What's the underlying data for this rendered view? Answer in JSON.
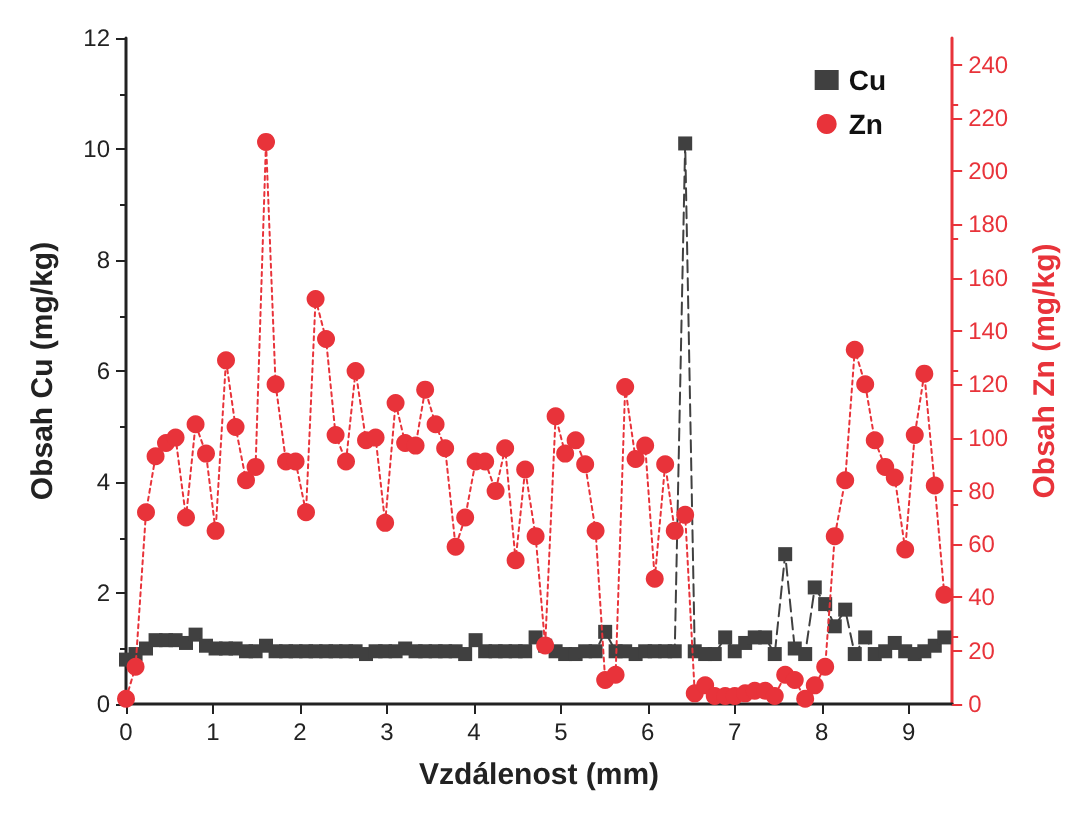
{
  "chart_data": {
    "type": "line",
    "xlabel": "Vzdálenost (mm)",
    "ylabel": "Obsah Cu (mg/kg)",
    "y2label": "Obsah Zn (mg/kg)",
    "x": [
      0,
      0.11,
      0.23,
      0.34,
      0.46,
      0.57,
      0.69,
      0.8,
      0.92,
      1.03,
      1.15,
      1.26,
      1.38,
      1.49,
      1.61,
      1.72,
      1.84,
      1.95,
      2.07,
      2.18,
      2.3,
      2.41,
      2.53,
      2.64,
      2.76,
      2.87,
      2.98,
      3.1,
      3.21,
      3.33,
      3.44,
      3.56,
      3.67,
      3.79,
      3.9,
      4.02,
      4.13,
      4.25,
      4.36,
      4.48,
      4.59,
      4.71,
      4.82,
      4.94,
      5.05,
      5.17,
      5.28,
      5.4,
      5.51,
      5.63,
      5.74,
      5.86,
      5.97,
      6.08,
      6.2,
      6.31,
      6.43,
      6.54,
      6.66,
      6.77,
      6.89,
      7.0,
      7.12,
      7.23,
      7.35,
      7.46,
      7.58,
      7.69,
      7.81,
      7.92,
      8.04,
      8.15,
      8.27,
      8.38,
      8.5,
      8.61,
      8.73,
      8.84,
      8.96,
      9.07,
      9.18,
      9.3,
      9.41
    ],
    "series": [
      {
        "name": "Cu",
        "color": "#404040",
        "marker": "square",
        "line_style": "dashed",
        "values": [
          0.8,
          0.9,
          1.0,
          1.15,
          1.15,
          1.15,
          1.1,
          1.25,
          1.05,
          1.0,
          1.0,
          1.0,
          0.95,
          0.95,
          1.05,
          0.95,
          0.95,
          0.95,
          0.95,
          0.95,
          0.95,
          0.95,
          0.95,
          0.95,
          0.9,
          0.95,
          0.95,
          0.95,
          1.0,
          0.95,
          0.95,
          0.95,
          0.95,
          0.95,
          0.9,
          1.15,
          0.95,
          0.95,
          0.95,
          0.95,
          0.95,
          1.2,
          1.05,
          0.95,
          0.9,
          0.9,
          0.95,
          0.95,
          1.3,
          0.95,
          0.95,
          0.9,
          0.95,
          0.95,
          0.95,
          0.95,
          10.1,
          0.95,
          0.9,
          0.9,
          1.2,
          0.95,
          1.1,
          1.2,
          1.2,
          0.9,
          2.7,
          1.0,
          0.9,
          2.1,
          1.8,
          1.4,
          1.7,
          0.9,
          1.2,
          0.9,
          0.95,
          1.1,
          0.95,
          0.9,
          0.95,
          1.05,
          1.2
        ]
      },
      {
        "name": "Zn",
        "color": "#e8333a",
        "marker": "circle",
        "line_style": "dotted",
        "axis": "y2",
        "values": [
          2,
          14,
          72,
          93,
          98,
          100,
          70,
          105,
          94,
          65,
          129,
          104,
          84,
          89,
          211,
          120,
          91,
          91,
          72,
          152,
          137,
          101,
          91,
          125,
          99,
          100,
          68,
          113,
          98,
          97,
          118,
          105,
          96,
          59,
          70,
          91,
          91,
          80,
          96,
          54,
          88,
          63,
          22,
          108,
          94,
          99,
          90,
          65,
          9,
          11,
          119,
          92,
          97,
          47,
          90,
          65,
          71,
          4,
          7,
          3,
          3,
          3,
          4,
          5,
          5,
          3,
          11,
          9,
          2,
          7,
          14,
          63,
          84,
          133,
          120,
          99,
          89,
          85,
          58,
          101,
          124,
          82,
          41
        ]
      }
    ],
    "xlim": [
      0,
      9.5
    ],
    "xticks": [
      0,
      1,
      2,
      3,
      4,
      5,
      6,
      7,
      8,
      9
    ],
    "ylim": [
      0,
      12
    ],
    "yticks": [
      0,
      2,
      4,
      6,
      8,
      10,
      12
    ],
    "y2lim": [
      0,
      250
    ],
    "y2ticks": [
      0,
      20,
      40,
      60,
      80,
      100,
      120,
      140,
      160,
      180,
      200,
      220,
      240
    ],
    "legend": "top right"
  }
}
